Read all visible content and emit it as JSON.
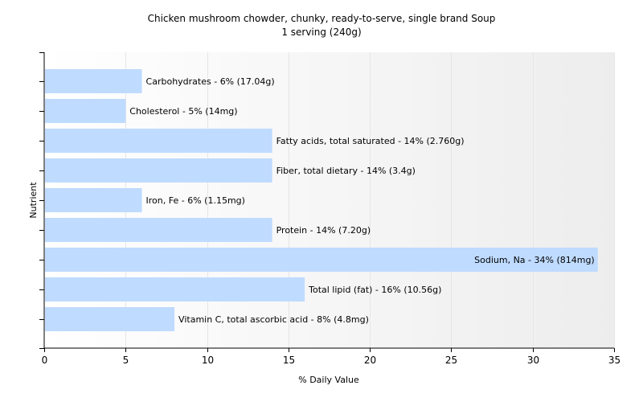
{
  "colors": {
    "bar": "#bfdbff",
    "axis": "#000000",
    "grid": "#e6e6e6",
    "plot_bg_start": "#ffffff",
    "plot_bg_end": "#ededed"
  },
  "chart_data": {
    "type": "bar",
    "orientation": "horizontal",
    "title": "Chicken mushroom chowder, chunky, ready-to-serve, single brand Soup",
    "subtitle": "1 serving (240g)",
    "xlabel": "% Daily Value",
    "ylabel": "Nutrient",
    "xlim": [
      0,
      35
    ],
    "xticks": [
      0,
      5,
      10,
      15,
      20,
      25,
      30,
      35
    ],
    "grid": "vertical",
    "legend": "none",
    "categories": [
      "Carbohydrates",
      "Cholesterol",
      "Fatty acids, total saturated",
      "Fiber, total dietary",
      "Iron, Fe",
      "Protein",
      "Sodium, Na",
      "Total lipid (fat)",
      "Vitamin C, total ascorbic acid"
    ],
    "values": [
      6,
      5,
      14,
      14,
      6,
      14,
      34,
      16,
      8
    ],
    "labels": [
      "Carbohydrates - 6% (17.04g)",
      "Cholesterol - 5% (14mg)",
      "Fatty acids, total saturated - 14% (2.760g)",
      "Fiber, total dietary - 14% (3.4g)",
      "Iron, Fe - 6% (1.15mg)",
      "Protein - 14% (7.20g)",
      "Sodium, Na - 34% (814mg)",
      "Total lipid (fat) - 16% (10.56g)",
      "Vitamin C, total ascorbic acid - 8% (4.8mg)"
    ]
  }
}
